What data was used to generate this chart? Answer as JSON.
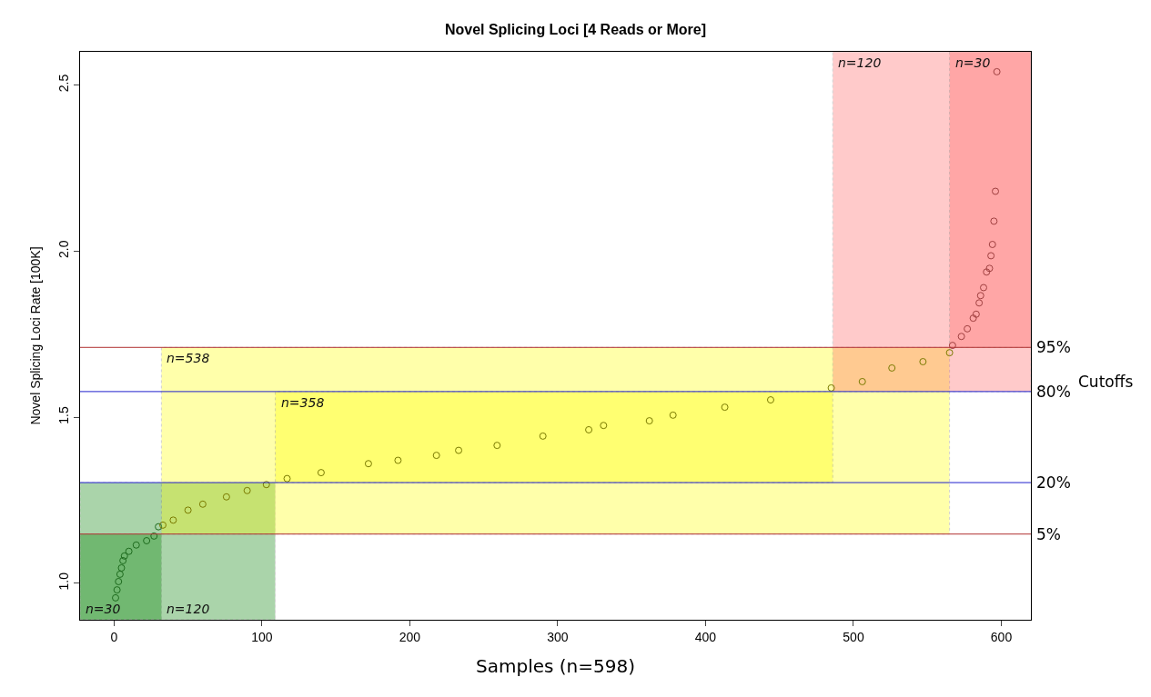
{
  "chart_data": {
    "type": "scatter",
    "title": "Novel Splicing Loci [4 Reads or More]",
    "xlabel": "Samples (n=598)",
    "ylabel": "Novel Splicing Loci Rate [100K]",
    "xlim": [
      -23,
      620
    ],
    "xticks": [
      0,
      100,
      200,
      300,
      400,
      500,
      600
    ],
    "ylim": [
      0.89,
      2.6
    ],
    "yticks": [
      {
        "value": 1,
        "label": "1.0"
      },
      {
        "value": 1.5,
        "label": "1.5"
      },
      {
        "value": 2,
        "label": "2.0"
      },
      {
        "value": 2.5,
        "label": "2.5"
      }
    ],
    "grid": false,
    "marker": "circle",
    "series": [
      {
        "color": "#1e6b1e",
        "x": [
          1,
          2,
          3,
          4,
          5,
          6,
          7,
          10,
          15,
          22,
          27,
          30
        ],
        "values": [
          0.956,
          0.98,
          1.005,
          1.027,
          1.046,
          1.068,
          1.082,
          1.096,
          1.115,
          1.128,
          1.142,
          1.17
        ]
      },
      {
        "color": "#7a7a00",
        "x": [
          33,
          40,
          50,
          60,
          76,
          90,
          103,
          117,
          140,
          172,
          192,
          218,
          233,
          259,
          290,
          321,
          331,
          362,
          378,
          413,
          444,
          485,
          506,
          526,
          547,
          565
        ],
        "values": [
          1.175,
          1.19,
          1.22,
          1.238,
          1.26,
          1.279,
          1.297,
          1.315,
          1.333,
          1.36,
          1.37,
          1.385,
          1.4,
          1.415,
          1.443,
          1.462,
          1.475,
          1.489,
          1.506,
          1.53,
          1.552,
          1.588,
          1.607,
          1.648,
          1.667,
          1.694
        ]
      },
      {
        "color": "#a04040",
        "x": [
          567,
          573,
          577,
          581,
          583,
          585,
          586,
          588,
          590,
          592,
          593,
          594,
          595,
          596,
          597
        ],
        "values": [
          1.716,
          1.743,
          1.766,
          1.798,
          1.81,
          1.844,
          1.866,
          1.89,
          1.937,
          1.948,
          1.986,
          2.02,
          2.09,
          2.18,
          2.54
        ]
      }
    ],
    "ref_lines": [
      {
        "axis": "y",
        "value": 1.71,
        "color": "#b03030"
      },
      {
        "axis": "y",
        "value": 1.577,
        "color": "#2020cc"
      },
      {
        "axis": "y",
        "value": 1.303,
        "color": "#2020cc"
      },
      {
        "axis": "y",
        "value": 1.148,
        "color": "#b03030"
      }
    ],
    "bands": [
      {
        "axis": "x",
        "from": -23,
        "to": 32,
        "label": "n=30",
        "color": "#008000"
      },
      {
        "axis": "x",
        "from": -23,
        "to": 109,
        "label": "n=120",
        "color": "#008000"
      },
      {
        "axis": "x",
        "from": 32,
        "to": 565,
        "label": "n=538",
        "color": "#ffff00"
      },
      {
        "axis": "x",
        "from": 109,
        "to": 486,
        "label": "n=358",
        "color": "#ffff00"
      },
      {
        "axis": "x",
        "from": 486,
        "to": 620,
        "label": "n=120",
        "color": "#ff6060"
      },
      {
        "axis": "x",
        "from": 565,
        "to": 620,
        "label": "n=30",
        "color": "#ff6060"
      }
    ],
    "annotations": [
      "Cutoffs",
      "95%",
      "80%",
      "20%",
      "5%"
    ]
  }
}
